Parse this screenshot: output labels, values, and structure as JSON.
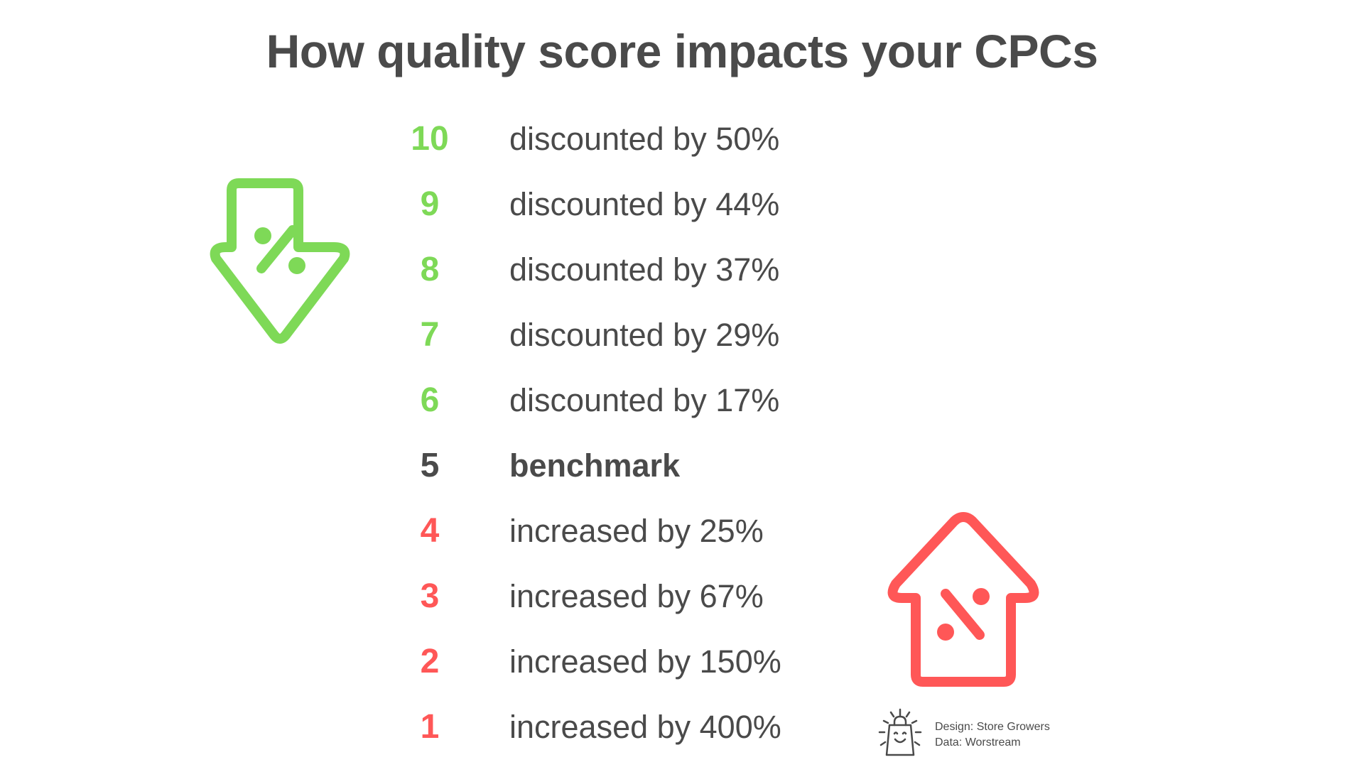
{
  "title": "How quality score impacts your CPCs",
  "rows": [
    {
      "score": "10",
      "label": "discounted by 50%",
      "color": "#7ed957"
    },
    {
      "score": "9",
      "label": "discounted by 44%",
      "color": "#7ed957"
    },
    {
      "score": "8",
      "label": "discounted by 37%",
      "color": "#7ed957"
    },
    {
      "score": "7",
      "label": "discounted by 29%",
      "color": "#7ed957"
    },
    {
      "score": "6",
      "label": "discounted by 17%",
      "color": "#7ed957"
    },
    {
      "score": "5",
      "label": "benchmark",
      "color": "#4a4a4a"
    },
    {
      "score": "4",
      "label": "increased by 25%",
      "color": "#ff5757"
    },
    {
      "score": "3",
      "label": "increased by 67%",
      "color": "#ff5757"
    },
    {
      "score": "2",
      "label": "increased by 150%",
      "color": "#ff5757"
    },
    {
      "score": "1",
      "label": "increased by 400%",
      "color": "#ff5757"
    }
  ],
  "icons": {
    "down": "percent-down-arrow-icon",
    "up": "percent-up-arrow-icon",
    "credit": "shopping-bag-icon"
  },
  "colors": {
    "green": "#7ed957",
    "red": "#ff5757",
    "text": "#4a4a4a"
  },
  "credit": {
    "design": "Design: Store Growers",
    "data": "Data: Worstream"
  }
}
